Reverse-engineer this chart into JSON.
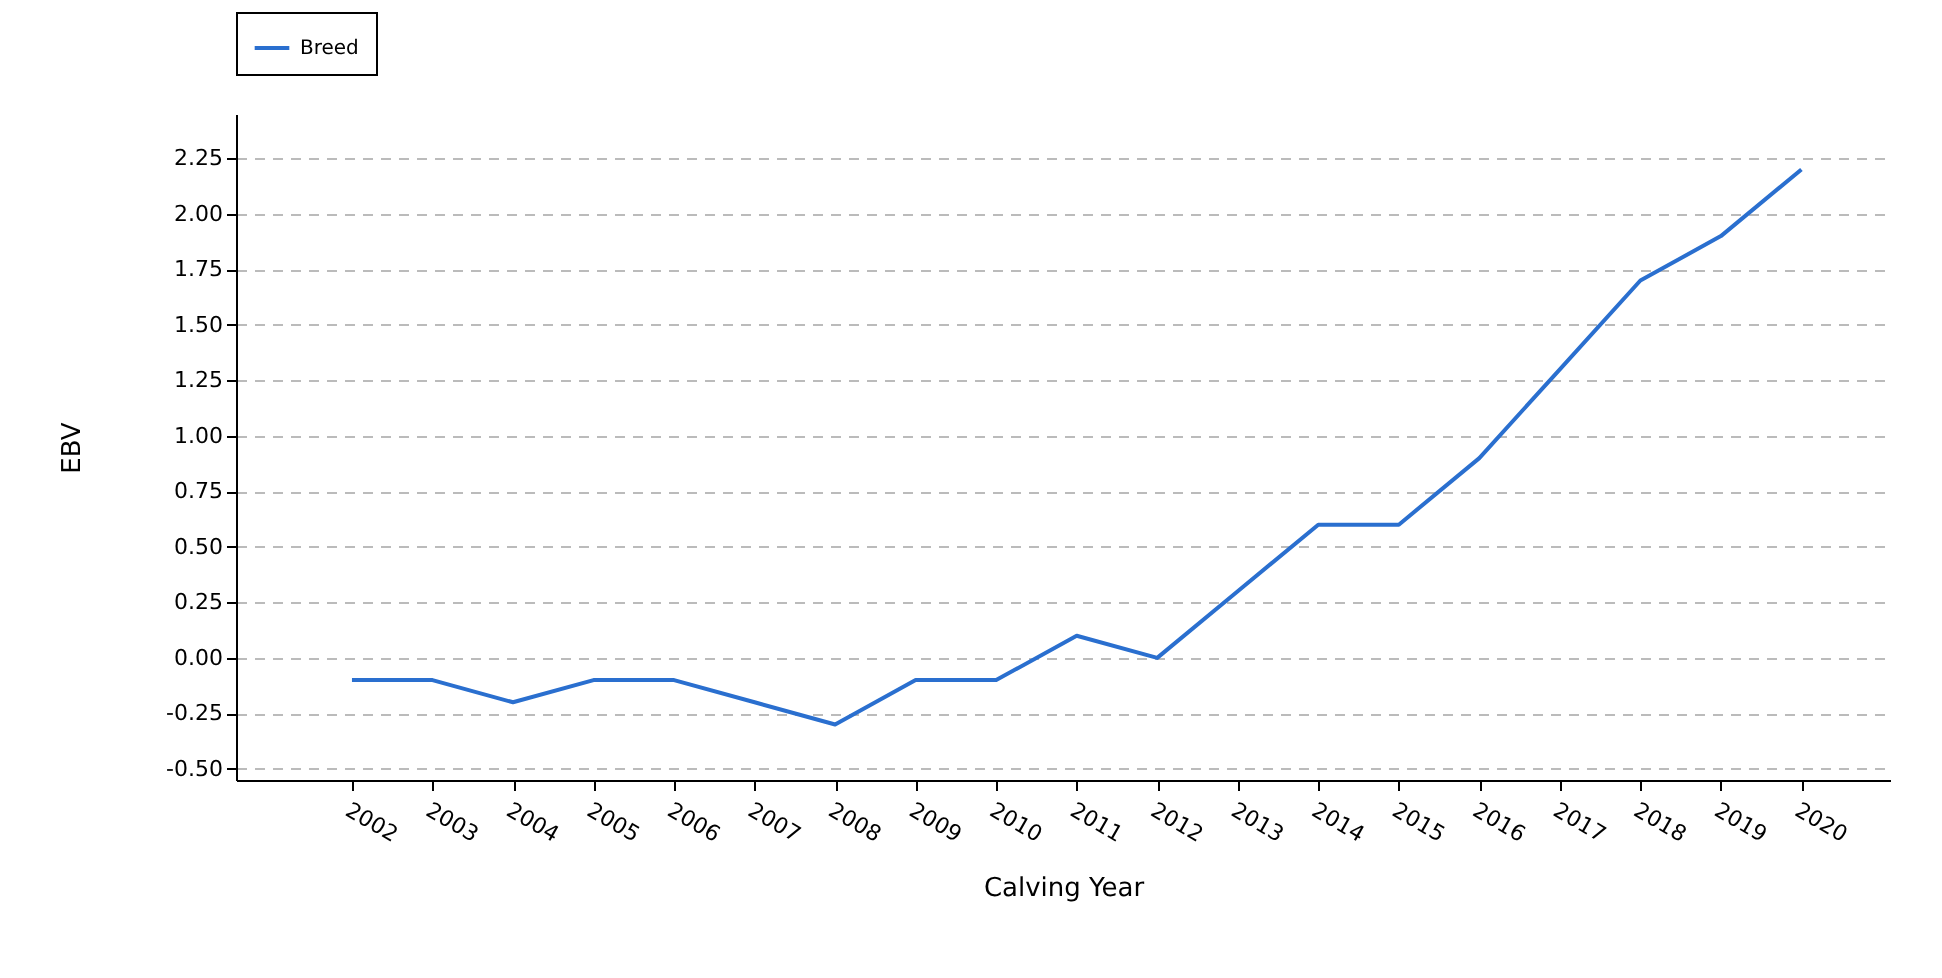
{
  "chart_data": {
    "type": "line",
    "xlabel": "Calving Year",
    "ylabel": "EBV",
    "categories": [
      "2002",
      "2003",
      "2004",
      "2005",
      "2006",
      "2007",
      "2008",
      "2009",
      "2010",
      "2011",
      "2012",
      "2013",
      "2014",
      "2015",
      "2016",
      "2017",
      "2018",
      "2019",
      "2020"
    ],
    "series": [
      {
        "name": "Breed",
        "color": "#2a6fcf",
        "values": [
          -0.1,
          -0.1,
          -0.2,
          -0.1,
          -0.1,
          -0.2,
          -0.3,
          -0.1,
          -0.1,
          0.1,
          0.0,
          0.3,
          0.6,
          0.6,
          0.9,
          1.3,
          1.7,
          1.9,
          2.2
        ]
      }
    ],
    "ylim": [
      -0.55,
      2.45
    ],
    "yticks": [
      {
        "value": -0.5,
        "label": "-0.50"
      },
      {
        "value": -0.25,
        "label": "-0.25"
      },
      {
        "value": 0,
        "label": "0.00"
      },
      {
        "value": 0.25,
        "label": "0.25"
      },
      {
        "value": 0.5,
        "label": "0.50"
      },
      {
        "value": 0.75,
        "label": "0.75"
      },
      {
        "value": 1,
        "label": "1.00"
      },
      {
        "value": 1.25,
        "label": "1.25"
      },
      {
        "value": 1.5,
        "label": "1.50"
      },
      {
        "value": 1.75,
        "label": "1.75"
      },
      {
        "value": 2,
        "label": "2.00"
      },
      {
        "value": 2.25,
        "label": "2.25"
      }
    ],
    "grid": "y",
    "legend": "top",
    "line_style": "solid",
    "marker": "none"
  }
}
